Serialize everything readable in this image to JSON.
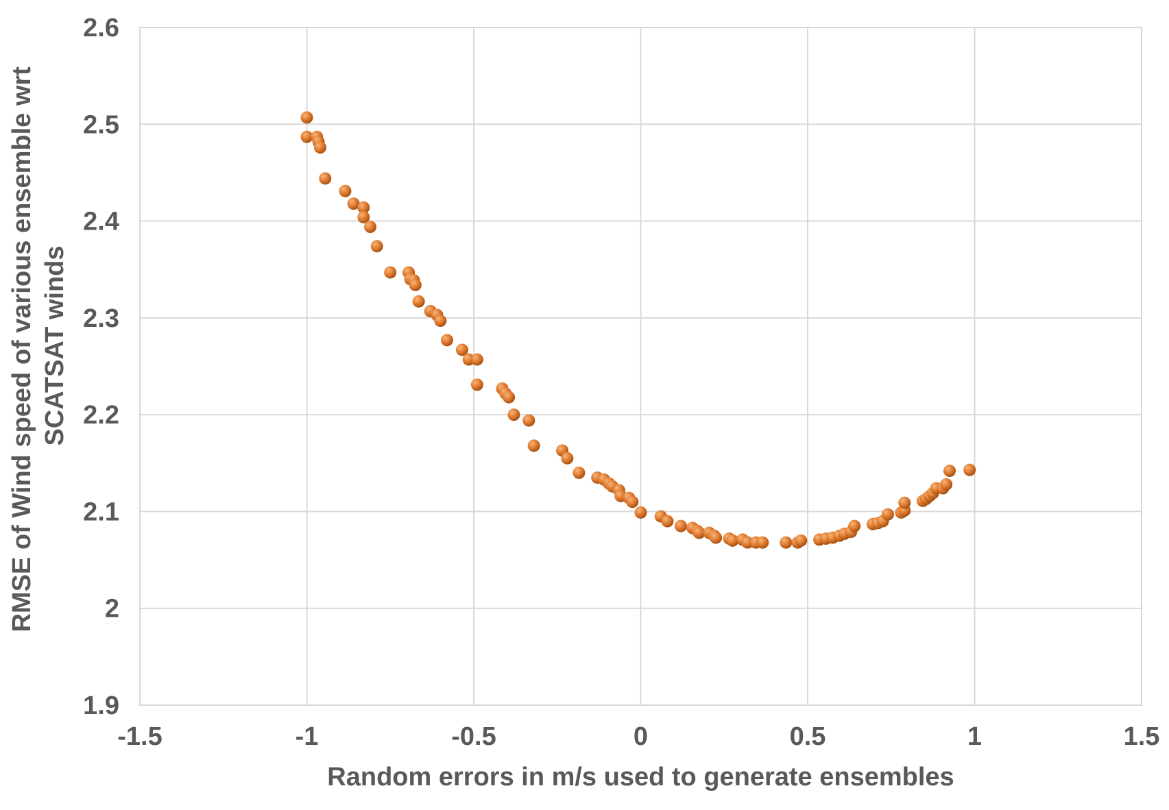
{
  "chart_data": {
    "type": "scatter",
    "title": "",
    "xlabel": "Random errors in m/s used to generate ensembles",
    "ylabel_lines": [
      "RMSE of Wind speed of various ensemble wrt",
      "SCATSAT winds"
    ],
    "xlim": [
      -1.5,
      1.5
    ],
    "ylim": [
      1.9,
      2.6
    ],
    "x_ticks": [
      -1.5,
      -1,
      -0.5,
      0,
      0.5,
      1,
      1.5
    ],
    "x_tick_labels": [
      "-1.5",
      "-1",
      "-0.5",
      "0",
      "0.5",
      "1",
      "1.5"
    ],
    "y_ticks": [
      1.9,
      2.0,
      2.1,
      2.2,
      2.3,
      2.4,
      2.5,
      2.6
    ],
    "y_tick_labels": [
      "1.9",
      "2",
      "2.1",
      "2.2",
      "2.3",
      "2.4",
      "2.5",
      "2.6"
    ],
    "grid": true,
    "legend": "none",
    "marker_color": "#e07a2e",
    "marker_highlight": "#f7b57a",
    "marker_shadow": "#a34f12",
    "series": [
      {
        "points": [
          [
            -1.0,
            2.507
          ],
          [
            -1.0,
            2.487
          ],
          [
            -0.97,
            2.487
          ],
          [
            -0.965,
            2.482
          ],
          [
            -0.96,
            2.476
          ],
          [
            -0.945,
            2.444
          ],
          [
            -0.885,
            2.431
          ],
          [
            -0.86,
            2.418
          ],
          [
            -0.83,
            2.414
          ],
          [
            -0.83,
            2.404
          ],
          [
            -0.81,
            2.394
          ],
          [
            -0.79,
            2.374
          ],
          [
            -0.75,
            2.347
          ],
          [
            -0.695,
            2.347
          ],
          [
            -0.69,
            2.34
          ],
          [
            -0.68,
            2.339
          ],
          [
            -0.675,
            2.334
          ],
          [
            -0.665,
            2.317
          ],
          [
            -0.63,
            2.307
          ],
          [
            -0.61,
            2.303
          ],
          [
            -0.6,
            2.297
          ],
          [
            -0.58,
            2.277
          ],
          [
            -0.535,
            2.267
          ],
          [
            -0.515,
            2.257
          ],
          [
            -0.49,
            2.257
          ],
          [
            -0.49,
            2.231
          ],
          [
            -0.415,
            2.227
          ],
          [
            -0.405,
            2.222
          ],
          [
            -0.395,
            2.218
          ],
          [
            -0.38,
            2.2
          ],
          [
            -0.335,
            2.194
          ],
          [
            -0.32,
            2.168
          ],
          [
            -0.235,
            2.163
          ],
          [
            -0.22,
            2.155
          ],
          [
            -0.185,
            2.14
          ],
          [
            -0.13,
            2.135
          ],
          [
            -0.11,
            2.133
          ],
          [
            -0.095,
            2.129
          ],
          [
            -0.085,
            2.126
          ],
          [
            -0.065,
            2.122
          ],
          [
            -0.06,
            2.116
          ],
          [
            -0.035,
            2.114
          ],
          [
            -0.025,
            2.11
          ],
          [
            0.0,
            2.099
          ],
          [
            0.06,
            2.095
          ],
          [
            0.08,
            2.09
          ],
          [
            0.12,
            2.085
          ],
          [
            0.155,
            2.083
          ],
          [
            0.17,
            2.08
          ],
          [
            0.175,
            2.078
          ],
          [
            0.205,
            2.078
          ],
          [
            0.22,
            2.075
          ],
          [
            0.225,
            2.073
          ],
          [
            0.265,
            2.072
          ],
          [
            0.275,
            2.07
          ],
          [
            0.305,
            2.071
          ],
          [
            0.32,
            2.068
          ],
          [
            0.345,
            2.068
          ],
          [
            0.365,
            2.068
          ],
          [
            0.435,
            2.068
          ],
          [
            0.47,
            2.068
          ],
          [
            0.48,
            2.07
          ],
          [
            0.535,
            2.071
          ],
          [
            0.555,
            2.072
          ],
          [
            0.575,
            2.073
          ],
          [
            0.595,
            2.075
          ],
          [
            0.61,
            2.077
          ],
          [
            0.63,
            2.079
          ],
          [
            0.64,
            2.085
          ],
          [
            0.695,
            2.087
          ],
          [
            0.71,
            2.088
          ],
          [
            0.725,
            2.09
          ],
          [
            0.74,
            2.097
          ],
          [
            0.78,
            2.099
          ],
          [
            0.79,
            2.101
          ],
          [
            0.79,
            2.109
          ],
          [
            0.845,
            2.111
          ],
          [
            0.855,
            2.113
          ],
          [
            0.865,
            2.116
          ],
          [
            0.875,
            2.119
          ],
          [
            0.885,
            2.124
          ],
          [
            0.905,
            2.124
          ],
          [
            0.915,
            2.128
          ],
          [
            0.925,
            2.142
          ],
          [
            0.985,
            2.143
          ]
        ]
      }
    ]
  }
}
